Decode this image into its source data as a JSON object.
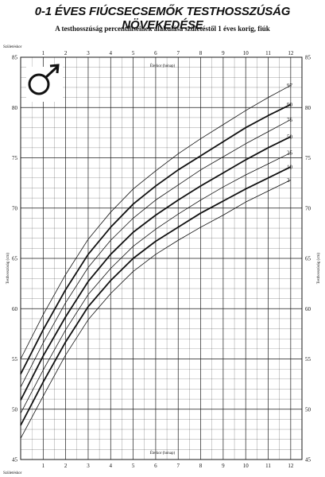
{
  "title": "0-1 ÉVES FIÚCSECSEMŐK TESTHOSSZÚSÁG NÖVEKEDÉSE",
  "subtitle": "A testhosszúság percentiliseinek alakulása születéstől 1 éves korig, fiúk",
  "chart_data": {
    "type": "line",
    "title": "0-1 ÉVES FIÚCSECSEMŐK TESTHOSSZÚSÁG NÖVEKEDÉSE",
    "subtitle": "A testhosszúság percentiliseinek alakulása születéstől 1 éves korig, fiúk",
    "xlabel": "Életkor (hónap)",
    "ylabel": "Testhosszúság (cm)",
    "birth_label": "Születéskor",
    "xlim": [
      0,
      12.5
    ],
    "ylim": [
      45,
      85
    ],
    "x_ticks": [
      "1",
      "2",
      "3",
      "4",
      "5",
      "6",
      "7",
      "8",
      "9",
      "10",
      "11",
      "12"
    ],
    "y_ticks": [
      "45",
      "50",
      "55",
      "60",
      "65",
      "70",
      "75",
      "80",
      "85"
    ],
    "grid": true,
    "x": [
      0,
      1,
      2,
      3,
      4,
      5,
      6,
      7,
      8,
      9,
      10,
      11,
      12
    ],
    "series": [
      {
        "name": "3",
        "values": [
          47.1,
          51.3,
          55.4,
          58.9,
          61.5,
          63.7,
          65.4,
          66.8,
          68.1,
          69.3,
          70.6,
          71.7,
          72.8
        ]
      },
      {
        "name": "10",
        "values": [
          48.4,
          52.7,
          56.7,
          60.2,
          62.8,
          65.0,
          66.7,
          68.1,
          69.5,
          70.7,
          71.9,
          73.0,
          74.1
        ]
      },
      {
        "name": "25",
        "values": [
          49.6,
          53.9,
          57.9,
          61.4,
          64.0,
          66.2,
          67.9,
          69.4,
          70.8,
          72.1,
          73.3,
          74.4,
          75.5
        ]
      },
      {
        "name": "50",
        "values": [
          50.9,
          55.3,
          59.2,
          62.7,
          65.4,
          67.6,
          69.3,
          70.8,
          72.2,
          73.5,
          74.8,
          76.0,
          77.1
        ]
      },
      {
        "name": "75",
        "values": [
          52.2,
          56.6,
          60.6,
          64.1,
          66.8,
          69.0,
          70.8,
          72.3,
          73.8,
          75.1,
          76.4,
          77.6,
          78.8
        ]
      },
      {
        "name": "90",
        "values": [
          53.5,
          57.9,
          61.9,
          65.4,
          68.1,
          70.4,
          72.2,
          73.8,
          75.2,
          76.6,
          78.0,
          79.2,
          80.3
        ]
      },
      {
        "name": "97",
        "values": [
          55.0,
          59.4,
          63.4,
          66.9,
          69.6,
          71.9,
          73.7,
          75.4,
          76.9,
          78.3,
          79.7,
          81.0,
          82.2
        ]
      }
    ],
    "bold_series": [
      "10",
      "50",
      "90"
    ],
    "colors": {
      "line": "#111111",
      "grid": "#1a1a1a",
      "background": "#ffffff"
    },
    "symbol": "male-symbol"
  }
}
